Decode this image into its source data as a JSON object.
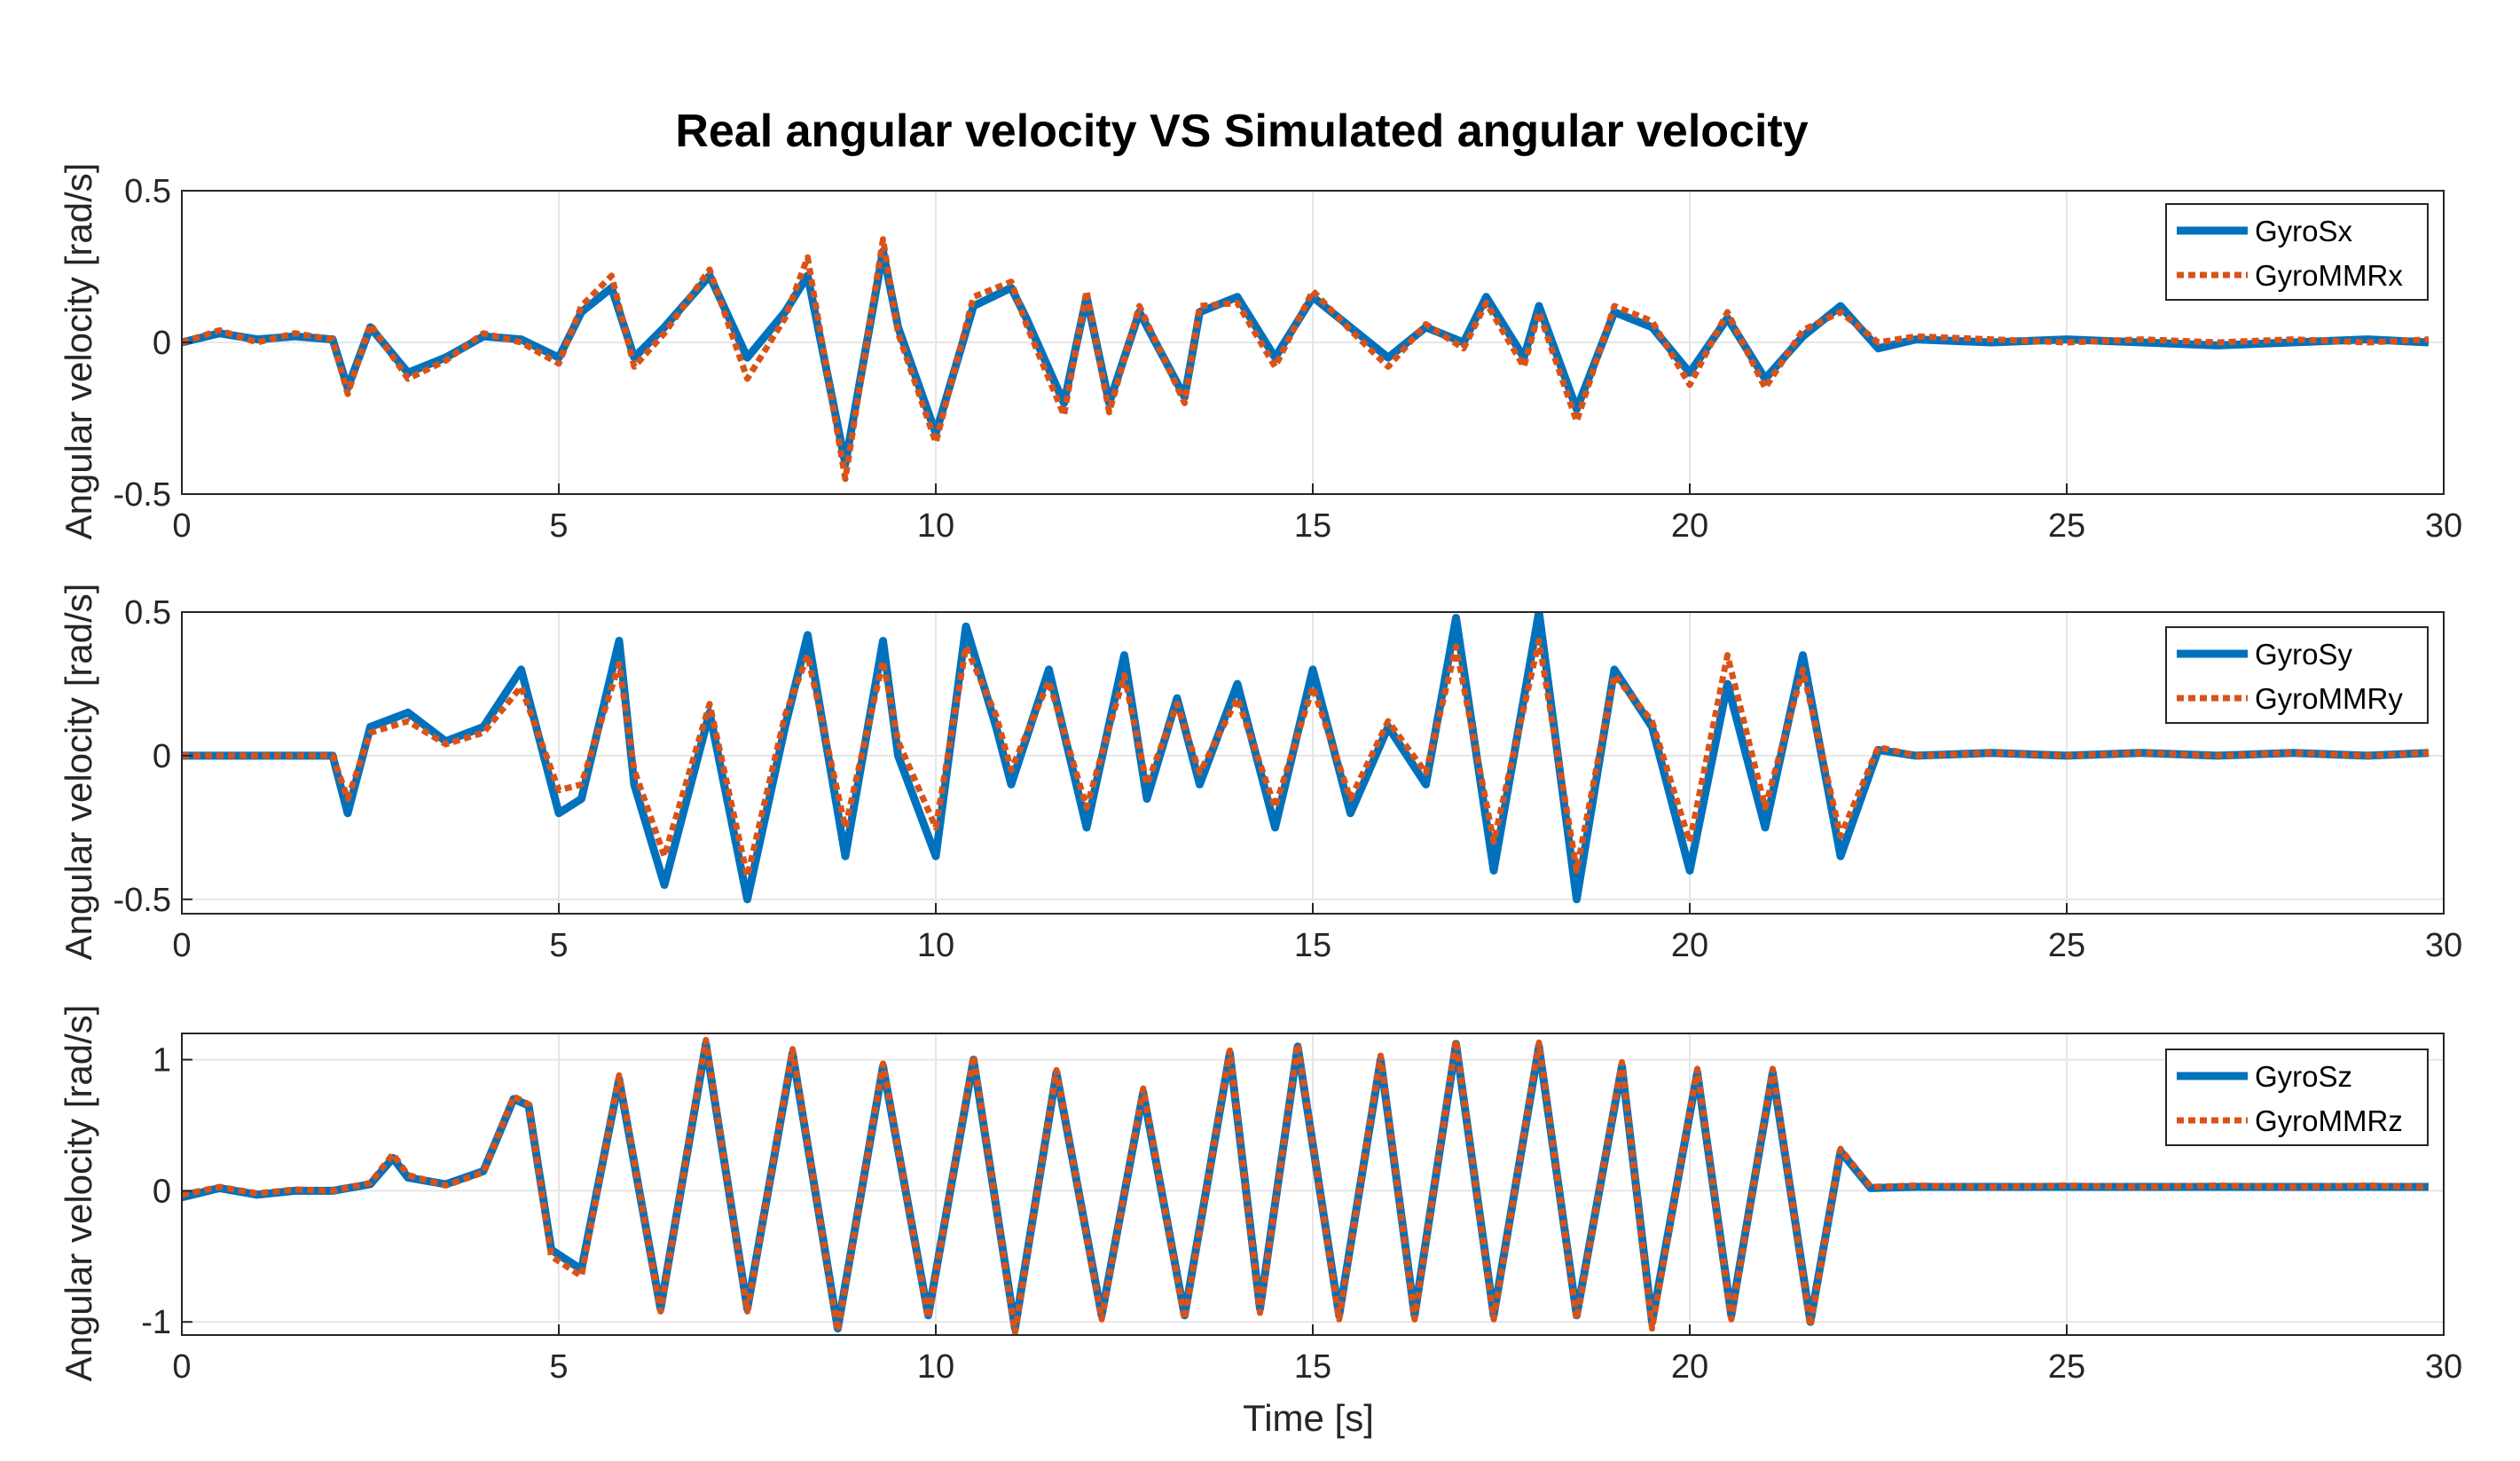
{
  "figure": {
    "title": "Real angular velocity VS Simulated angular velocity",
    "xlabel": "Time [s]"
  },
  "colors": {
    "real": "#0072BD",
    "sim": "#D95319",
    "grid": "#e6e6e6",
    "axis": "#262626"
  },
  "chart_data": [
    {
      "type": "line",
      "ylabel": "Angular velocity [rad/s]",
      "xlim": [
        0,
        30
      ],
      "ylim": [
        -0.5,
        0.5
      ],
      "xticks": [
        0,
        5,
        10,
        15,
        20,
        25,
        30
      ],
      "yticks": [
        -0.5,
        0,
        0.5
      ],
      "ytick_labels": [
        "-0.5",
        "0",
        "0.5"
      ],
      "legend_position": "top-right",
      "series": [
        {
          "name": "GyroSx",
          "style": "solid",
          "x": [
            0,
            0.5,
            1,
            1.5,
            2,
            2.2,
            2.5,
            3,
            3.5,
            4,
            4.5,
            5,
            5.3,
            5.7,
            6,
            6.4,
            7,
            7.5,
            8,
            8.3,
            8.8,
            9.3,
            9.5,
            10,
            10.5,
            11,
            11.2,
            11.7,
            12,
            12.3,
            12.7,
            13.3,
            13.5,
            14,
            14.5,
            15,
            15.5,
            16,
            16.5,
            17,
            17.3,
            17.8,
            18,
            18.5,
            19,
            19.5,
            20,
            20.5,
            21,
            21.5,
            22,
            22.5,
            23,
            24,
            25,
            26,
            27,
            28,
            29,
            29.8
          ],
          "y": [
            0,
            0.03,
            0.01,
            0.02,
            0.01,
            -0.15,
            0.05,
            -0.1,
            -0.05,
            0.02,
            0.01,
            -0.05,
            0.1,
            0.18,
            -0.05,
            0.05,
            0.22,
            -0.05,
            0.1,
            0.22,
            -0.4,
            0.3,
            0.05,
            -0.3,
            0.12,
            0.18,
            0.08,
            -0.2,
            0.15,
            -0.2,
            0.1,
            -0.18,
            0.1,
            0.15,
            -0.05,
            0.15,
            0.05,
            -0.05,
            0.05,
            0.0,
            0.15,
            -0.05,
            0.12,
            -0.22,
            0.1,
            0.05,
            -0.1,
            0.08,
            -0.12,
            0.02,
            0.12,
            -0.02,
            0.01,
            0.0,
            0.01,
            0.0,
            -0.01,
            0.0,
            0.01,
            0.0
          ]
        },
        {
          "name": "GyroMMRx",
          "style": "dotted",
          "x": [
            0,
            0.5,
            1,
            1.5,
            2,
            2.2,
            2.5,
            3,
            3.5,
            4,
            4.5,
            5,
            5.3,
            5.7,
            6,
            6.4,
            7,
            7.5,
            8,
            8.3,
            8.8,
            9.3,
            9.5,
            10,
            10.5,
            11,
            11.2,
            11.7,
            12,
            12.3,
            12.7,
            13.3,
            13.5,
            14,
            14.5,
            15,
            15.5,
            16,
            16.5,
            17,
            17.3,
            17.8,
            18,
            18.5,
            19,
            19.5,
            20,
            20.5,
            21,
            21.5,
            22,
            22.5,
            23,
            24,
            25,
            26,
            27,
            28,
            29,
            29.8
          ],
          "y": [
            0,
            0.04,
            0.0,
            0.03,
            0.01,
            -0.17,
            0.06,
            -0.12,
            -0.06,
            0.03,
            0.0,
            -0.07,
            0.12,
            0.22,
            -0.08,
            0.03,
            0.24,
            -0.12,
            0.08,
            0.28,
            -0.45,
            0.34,
            0.03,
            -0.33,
            0.15,
            0.2,
            0.06,
            -0.24,
            0.17,
            -0.23,
            0.12,
            -0.2,
            0.12,
            0.13,
            -0.08,
            0.17,
            0.04,
            -0.08,
            0.06,
            -0.02,
            0.13,
            -0.08,
            0.1,
            -0.26,
            0.12,
            0.07,
            -0.14,
            0.1,
            -0.15,
            0.04,
            0.1,
            0.0,
            0.02,
            0.01,
            0.0,
            0.01,
            0.0,
            0.01,
            0.0,
            0.01
          ]
        }
      ]
    },
    {
      "type": "line",
      "ylabel": "Angular velocity [rad/s]",
      "xlim": [
        0,
        30
      ],
      "ylim": [
        -0.55,
        0.5
      ],
      "xticks": [
        0,
        5,
        10,
        15,
        20,
        25,
        30
      ],
      "yticks": [
        -0.5,
        0,
        0.5
      ],
      "ytick_labels": [
        "-0.5",
        "0",
        "0.5"
      ],
      "legend_position": "top-right",
      "series": [
        {
          "name": "GyroSy",
          "style": "solid",
          "x": [
            0,
            1,
            2,
            2.2,
            2.5,
            3,
            3.5,
            4,
            4.5,
            5,
            5.3,
            5.8,
            6,
            6.4,
            7,
            7.5,
            8,
            8.3,
            8.8,
            9.3,
            9.5,
            10,
            10.4,
            10.8,
            11,
            11.5,
            12,
            12.5,
            12.8,
            13.2,
            13.5,
            14,
            14.5,
            15,
            15.5,
            16,
            16.5,
            16.9,
            17.4,
            18,
            18.5,
            19,
            19.5,
            20,
            20.5,
            21,
            21.5,
            22,
            22.5,
            23,
            24,
            25,
            26,
            27,
            28,
            29,
            29.8
          ],
          "y": [
            0,
            0.0,
            0.0,
            -0.2,
            0.1,
            0.15,
            0.05,
            0.1,
            0.3,
            -0.2,
            -0.15,
            0.4,
            -0.1,
            -0.45,
            0.15,
            -0.5,
            0.1,
            0.42,
            -0.35,
            0.4,
            0.0,
            -0.35,
            0.45,
            0.1,
            -0.1,
            0.3,
            -0.25,
            0.35,
            -0.15,
            0.2,
            -0.1,
            0.25,
            -0.25,
            0.3,
            -0.2,
            0.1,
            -0.1,
            0.48,
            -0.4,
            0.5,
            -0.5,
            0.3,
            0.1,
            -0.4,
            0.25,
            -0.25,
            0.35,
            -0.35,
            0.02,
            0.0,
            0.01,
            0.0,
            0.01,
            0.0,
            0.01,
            0.0,
            0.01
          ]
        },
        {
          "name": "GyroMMRy",
          "style": "dotted",
          "x": [
            0,
            1,
            2,
            2.2,
            2.5,
            3,
            3.5,
            4,
            4.5,
            5,
            5.3,
            5.8,
            6,
            6.4,
            7,
            7.5,
            8,
            8.3,
            8.8,
            9.3,
            9.5,
            10,
            10.4,
            10.8,
            11,
            11.5,
            12,
            12.5,
            12.8,
            13.2,
            13.5,
            14,
            14.5,
            15,
            15.5,
            16,
            16.5,
            16.9,
            17.4,
            18,
            18.5,
            19,
            19.5,
            20,
            20.5,
            21,
            21.5,
            22,
            22.5,
            23,
            24,
            25,
            26,
            27,
            28,
            29,
            29.8
          ],
          "y": [
            0,
            0.0,
            0.0,
            -0.15,
            0.08,
            0.12,
            0.04,
            0.08,
            0.24,
            -0.12,
            -0.1,
            0.32,
            -0.05,
            -0.35,
            0.18,
            -0.42,
            0.14,
            0.35,
            -0.25,
            0.33,
            0.05,
            -0.25,
            0.38,
            0.14,
            -0.05,
            0.26,
            -0.18,
            0.28,
            -0.1,
            0.18,
            -0.06,
            0.2,
            -0.18,
            0.24,
            -0.15,
            0.12,
            -0.06,
            0.38,
            -0.3,
            0.4,
            -0.4,
            0.28,
            0.12,
            -0.3,
            0.35,
            -0.18,
            0.3,
            -0.28,
            0.03,
            0.0,
            0.01,
            0.0,
            0.01,
            0.0,
            0.01,
            0.0,
            0.01
          ]
        }
      ]
    },
    {
      "type": "line",
      "ylabel": "Angular velocity [rad/s]",
      "xlim": [
        0,
        30
      ],
      "ylim": [
        -1.1,
        1.2
      ],
      "xticks": [
        0,
        5,
        10,
        15,
        20,
        25,
        30
      ],
      "yticks": [
        -1,
        0,
        1
      ],
      "ytick_labels": [
        "-1",
        "0",
        "1"
      ],
      "legend_position": "top-right",
      "series": [
        {
          "name": "GyroSz",
          "style": "solid",
          "x": [
            0,
            0.5,
            1,
            1.5,
            2,
            2.5,
            2.8,
            3,
            3.5,
            4,
            4.4,
            4.6,
            4.9,
            5.3,
            5.8,
            6.35,
            6.95,
            7.5,
            8.1,
            8.7,
            9.3,
            9.9,
            10.5,
            11.05,
            11.6,
            12.2,
            12.75,
            13.3,
            13.9,
            14.3,
            14.8,
            15.35,
            15.9,
            16.35,
            16.9,
            17.4,
            18.0,
            18.5,
            19.1,
            19.5,
            20.1,
            20.55,
            21.1,
            21.6,
            22.0,
            22.4,
            23,
            24,
            25,
            26,
            27,
            28,
            29,
            29.8
          ],
          "y": [
            -0.05,
            0.02,
            -0.03,
            0.0,
            0.0,
            0.05,
            0.25,
            0.1,
            0.05,
            0.15,
            0.7,
            0.65,
            -0.45,
            -0.6,
            0.85,
            -0.9,
            1.12,
            -0.9,
            1.05,
            -1.05,
            0.95,
            -0.95,
            1.0,
            -1.05,
            0.9,
            -0.95,
            0.75,
            -0.95,
            1.05,
            -0.9,
            1.1,
            -0.95,
            1.0,
            -0.95,
            1.12,
            -0.95,
            1.1,
            -0.95,
            0.95,
            -1.0,
            0.9,
            -0.95,
            0.9,
            -1.0,
            0.3,
            0.02,
            0.03,
            0.03,
            0.03,
            0.03,
            0.03,
            0.03,
            0.03,
            0.03
          ]
        },
        {
          "name": "GyroMMRz",
          "style": "dotted",
          "x": [
            0,
            0.5,
            1,
            1.5,
            2,
            2.5,
            2.8,
            3,
            3.5,
            4,
            4.4,
            4.6,
            4.9,
            5.3,
            5.8,
            6.35,
            6.95,
            7.5,
            8.1,
            8.7,
            9.3,
            9.9,
            10.5,
            11.05,
            11.6,
            12.2,
            12.75,
            13.3,
            13.9,
            14.3,
            14.8,
            15.35,
            15.9,
            16.35,
            16.9,
            17.4,
            18.0,
            18.5,
            19.1,
            19.5,
            20.1,
            20.55,
            21.1,
            21.6,
            22.0,
            22.4,
            23,
            24,
            25,
            26,
            27,
            28,
            29,
            29.8
          ],
          "y": [
            -0.03,
            0.03,
            -0.02,
            0.01,
            0.0,
            0.06,
            0.28,
            0.12,
            0.04,
            0.14,
            0.72,
            0.66,
            -0.5,
            -0.65,
            0.88,
            -0.92,
            1.15,
            -0.92,
            1.08,
            -1.07,
            0.97,
            -0.97,
            1.03,
            -1.08,
            0.92,
            -0.98,
            0.78,
            -0.98,
            1.07,
            -0.93,
            1.12,
            -0.98,
            1.03,
            -0.98,
            1.15,
            -0.98,
            1.13,
            -0.98,
            0.98,
            -1.05,
            0.93,
            -0.98,
            0.93,
            -1.03,
            0.32,
            0.03,
            0.04,
            0.03,
            0.04,
            0.03,
            0.04,
            0.03,
            0.04,
            0.03
          ]
        }
      ]
    }
  ]
}
